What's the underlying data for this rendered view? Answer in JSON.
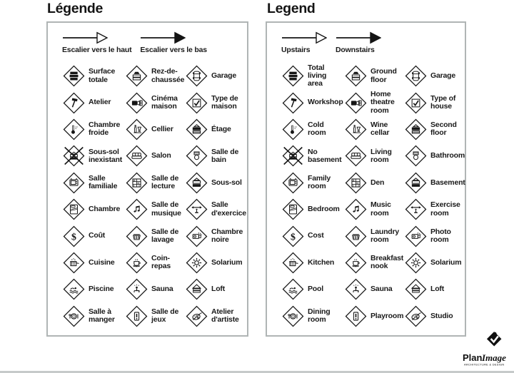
{
  "page": {
    "background": "#ffffff",
    "bottom_rule_color": "#c6caca",
    "ink_color": "#1a1a1a",
    "panel_border_color": "#b0b5b5"
  },
  "panels": [
    {
      "id": "fr",
      "title": "Légende",
      "arrows": [
        {
          "style": "hollow",
          "label": "Escalier vers le haut"
        },
        {
          "style": "solid",
          "label": "Escalier vers le bas"
        }
      ],
      "items": [
        {
          "icon": "total-area",
          "label": "Surface\ntotale"
        },
        {
          "icon": "ground-floor",
          "label": "Rez-de-\nchaussée"
        },
        {
          "icon": "garage-car",
          "label": "Garage"
        },
        {
          "icon": "workshop-hammer",
          "label": "Atelier"
        },
        {
          "icon": "home-theatre",
          "label": "Cinéma\nmaison"
        },
        {
          "icon": "house-check",
          "label": "Type de\nmaison"
        },
        {
          "icon": "cold-thermometer",
          "label": "Chambre\nfroide"
        },
        {
          "icon": "wine-cellar",
          "label": "Cellier"
        },
        {
          "icon": "second-floor",
          "label": "Étage"
        },
        {
          "icon": "no-basement",
          "label": "Sous-sol\ninexistant"
        },
        {
          "icon": "sofa",
          "label": "Salon"
        },
        {
          "icon": "toilet",
          "label": "Salle de\nbain"
        },
        {
          "icon": "tv",
          "label": "Salle\nfamiliale"
        },
        {
          "icon": "bookshelf",
          "label": "Salle de\nlecture"
        },
        {
          "icon": "basement",
          "label": "Sous-sol"
        },
        {
          "icon": "bed",
          "label": "Chambre"
        },
        {
          "icon": "music-note",
          "label": "Salle de\nmusique"
        },
        {
          "icon": "exercise",
          "label": "Salle\nd'exercice"
        },
        {
          "icon": "dollar",
          "label": "Coût"
        },
        {
          "icon": "laundry-basket",
          "label": "Salle de\nlavage"
        },
        {
          "icon": "photo-camera",
          "label": "Chambre\nnoire"
        },
        {
          "icon": "cooking-pot",
          "label": "Cuisine"
        },
        {
          "icon": "coffee-cup",
          "label": "Coin-\nrepas"
        },
        {
          "icon": "sun",
          "label": "Solarium"
        },
        {
          "icon": "swimmer",
          "label": "Piscine"
        },
        {
          "icon": "sauna-person",
          "label": "Sauna"
        },
        {
          "icon": "loft",
          "label": "Loft"
        },
        {
          "icon": "dining-plate",
          "label": "Salle à\nmanger"
        },
        {
          "icon": "game-piece",
          "label": "Salle de\njeux"
        },
        {
          "icon": "artist-palette",
          "label": "Atelier\nd'artiste"
        }
      ]
    },
    {
      "id": "en",
      "title": "Legend",
      "arrows": [
        {
          "style": "hollow",
          "label": "Upstairs"
        },
        {
          "style": "solid",
          "label": "Downstairs"
        }
      ],
      "items": [
        {
          "icon": "total-area",
          "label": "Total\nliving\narea"
        },
        {
          "icon": "ground-floor",
          "label": "Ground\nfloor"
        },
        {
          "icon": "garage-car",
          "label": "Garage"
        },
        {
          "icon": "workshop-hammer",
          "label": "Workshop"
        },
        {
          "icon": "home-theatre",
          "label": "Home\ntheatre\nroom"
        },
        {
          "icon": "house-check",
          "label": "Type of\nhouse"
        },
        {
          "icon": "cold-thermometer",
          "label": "Cold\nroom"
        },
        {
          "icon": "wine-cellar",
          "label": "Wine\ncellar"
        },
        {
          "icon": "second-floor",
          "label": "Second\nfloor"
        },
        {
          "icon": "no-basement",
          "label": "No\nbasement"
        },
        {
          "icon": "sofa",
          "label": "Living\nroom"
        },
        {
          "icon": "toilet",
          "label": "Bathroom"
        },
        {
          "icon": "tv",
          "label": "Family\nroom"
        },
        {
          "icon": "bookshelf",
          "label": "Den"
        },
        {
          "icon": "basement",
          "label": "Basement"
        },
        {
          "icon": "bed",
          "label": "Bedroom"
        },
        {
          "icon": "music-note",
          "label": "Music\nroom"
        },
        {
          "icon": "exercise",
          "label": "Exercise\nroom"
        },
        {
          "icon": "dollar",
          "label": "Cost"
        },
        {
          "icon": "laundry-basket",
          "label": "Laundry\nroom"
        },
        {
          "icon": "photo-camera",
          "label": "Photo\nroom"
        },
        {
          "icon": "cooking-pot",
          "label": "Kitchen"
        },
        {
          "icon": "coffee-cup",
          "label": "Breakfast\nnook"
        },
        {
          "icon": "sun",
          "label": "Solarium"
        },
        {
          "icon": "swimmer",
          "label": "Pool"
        },
        {
          "icon": "sauna-person",
          "label": "Sauna"
        },
        {
          "icon": "loft",
          "label": "Loft"
        },
        {
          "icon": "dining-plate",
          "label": "Dining\nroom"
        },
        {
          "icon": "game-piece",
          "label": "Playroom"
        },
        {
          "icon": "artist-palette",
          "label": "Studio"
        }
      ]
    }
  ],
  "logo": {
    "text_bold": "Plan",
    "text_italic": "Image",
    "tagline": "ARCHITECTURE & DESIGN"
  }
}
